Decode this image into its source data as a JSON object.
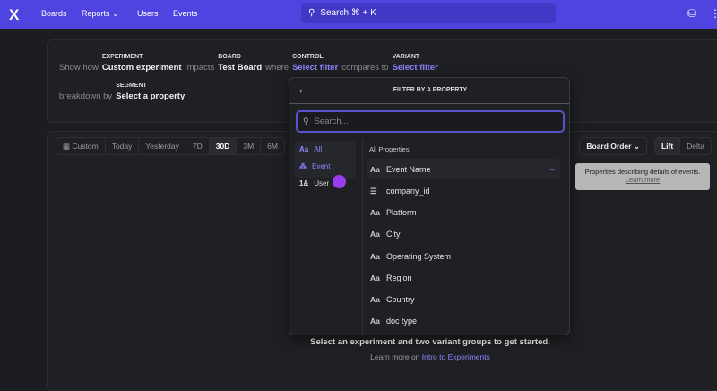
{
  "nav": {
    "logo": "X",
    "items": [
      "Boards",
      "Reports",
      "Users",
      "Events"
    ],
    "search": "Search ⌘ + K"
  },
  "query": {
    "experiment_label": "EXPERIMENT",
    "board_label": "BOARD",
    "control_label": "CONTROL",
    "variant_label": "VARIANT",
    "segment_label": "SEGMENT",
    "show_how": "Show how",
    "experiment": "Custom experiment",
    "impacts": "impacts",
    "board": "Test Board",
    "where": "where",
    "control": "Select filter",
    "compares_to": "compares to",
    "variant": "Select filter",
    "breakdown_by": "breakdown by",
    "segment": "Select a property"
  },
  "toolbar": {
    "custom": "Custom",
    "ranges": [
      "Today",
      "Yesterday",
      "7D",
      "30D",
      "3M",
      "6M"
    ],
    "selected": "30D",
    "board_order": "Board Order",
    "lift": "Lift",
    "delta": "Delta"
  },
  "popup": {
    "title": "FILTER BY A PROPERTY",
    "search_placeholder": "Search...",
    "categories": [
      {
        "icon": "Aa",
        "label": "All"
      },
      {
        "icon": "⁂",
        "label": "Event"
      },
      {
        "icon": "1&",
        "label": "User"
      }
    ],
    "section": "All Properties",
    "tooltip": "Properties describing details of events.",
    "tooltip_link": "Learn more",
    "properties": [
      {
        "icon": "Aa",
        "label": "Event Name"
      },
      {
        "icon": "☰",
        "label": "company_id"
      },
      {
        "icon": "Aa",
        "label": "Platform"
      },
      {
        "icon": "Aa",
        "label": "City"
      },
      {
        "icon": "Aa",
        "label": "Operating System"
      },
      {
        "icon": "Aa",
        "label": "Region"
      },
      {
        "icon": "Aa",
        "label": "Country"
      },
      {
        "icon": "Aa",
        "label": "doc type"
      }
    ]
  },
  "empty": {
    "message": "Select an experiment and two variant groups to get started.",
    "learn_prefix": "Learn more on",
    "learn_link": "Intro to Experiments"
  },
  "colors": {
    "nav": "#4f44e0",
    "accent": "#8d86ff"
  }
}
